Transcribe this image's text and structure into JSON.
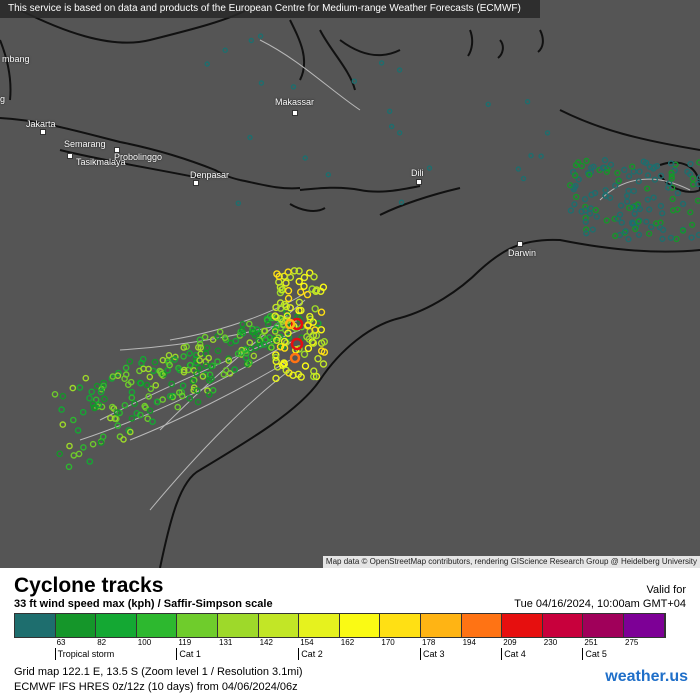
{
  "map": {
    "attribution_top": "This service is based on data and products of the European Centre for Medium-range Weather Forecasts (ECMWF)",
    "attribution_bottom": "Map data © OpenStreetMap contributors, rendering GIScience Research Group @ Heidelberg University",
    "cities": [
      {
        "name": "mbang",
        "id": "palembang"
      },
      {
        "name": "Makassar",
        "id": "makassar"
      },
      {
        "name": "Jakarta",
        "id": "jakarta"
      },
      {
        "name": "Semarang",
        "id": "semarang"
      },
      {
        "name": "Tasikmalaya",
        "id": "tasikmalaya"
      },
      {
        "name": "Probolinggo",
        "id": "probolinggo"
      },
      {
        "name": "Denpasar",
        "id": "denpasar"
      },
      {
        "name": "Dili",
        "id": "dili"
      },
      {
        "name": "Darwin",
        "id": "darwin"
      },
      {
        "name": "g",
        "id": "edge-g"
      }
    ],
    "colors": {
      "sea": "#555555",
      "coast": "#111111",
      "track_line": "#b8b8b8"
    }
  },
  "legend": {
    "title": "Cyclone tracks",
    "subtitle": "33 ft wind speed max (kph) / Saffir-Simpson scale",
    "valid_for": "Valid for",
    "valid_time": "Tue 04/16/2024, 10:00am GMT+04",
    "thresholds": [
      "63",
      "82",
      "100",
      "119",
      "131",
      "142",
      "154",
      "162",
      "170",
      "178",
      "194",
      "209",
      "230",
      "251",
      "275"
    ],
    "categories": [
      "Tropical storm",
      "Cat 1",
      "Cat 2",
      "Cat 3",
      "Cat 4",
      "Cat 5"
    ],
    "colors": [
      "#1e6e6e",
      "#15962a",
      "#14a833",
      "#2db82f",
      "#6fcc2c",
      "#9ed92a",
      "#c2e626",
      "#e6f21e",
      "#fafa14",
      "#ffe014",
      "#ffb414",
      "#ff7314",
      "#e60f0f",
      "#c8003c",
      "#a0005a",
      "#7d0096"
    ],
    "grid_info": "Grid map 122.1 E, 13.5 S (Zoom level 1 / Resolution 3.1mi)",
    "model_info": "ECMWF IFS HRES 0z/12z (10 days) from 04/06/2024/06z",
    "brand": "weather.us"
  }
}
